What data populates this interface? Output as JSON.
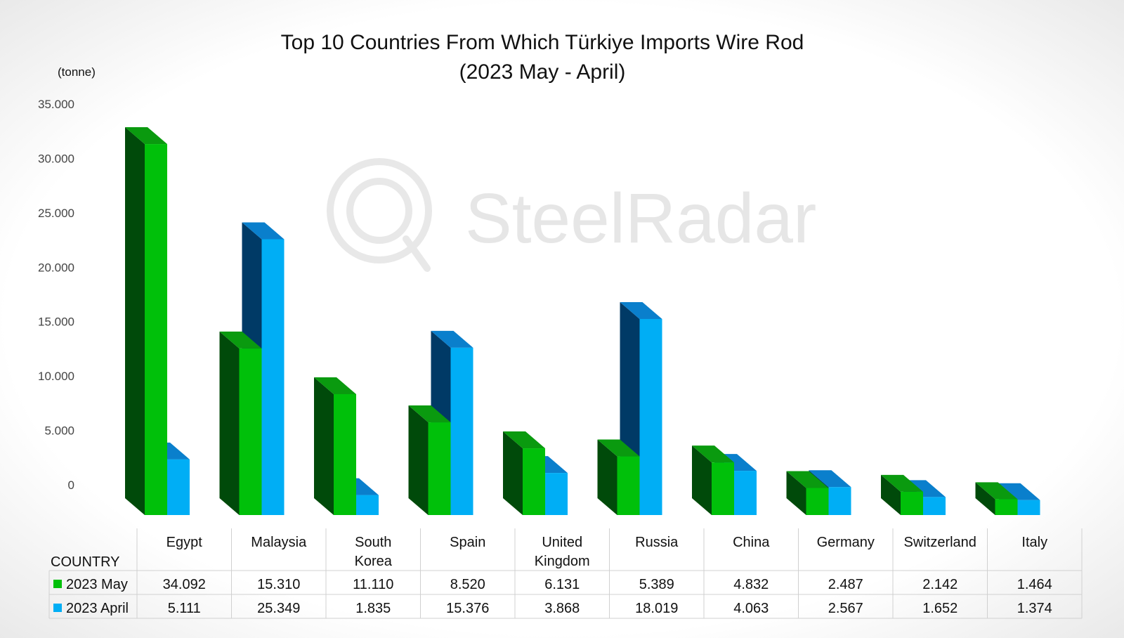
{
  "chart_data": {
    "type": "bar",
    "title": [
      "Top 10 Countries From Which Türkiye Imports Wire Rod",
      "(2023 May - April)"
    ],
    "unit": "(tonne)",
    "xlabel": "COUNTRY",
    "ylim": [
      0,
      35000
    ],
    "yticks": [
      "0",
      "5.000",
      "10.000",
      "15.000",
      "20.000",
      "25.000",
      "30.000",
      "35.000"
    ],
    "categories": [
      [
        "Egypt"
      ],
      [
        "Malaysia"
      ],
      [
        "South",
        "Korea"
      ],
      [
        "Spain"
      ],
      [
        "United",
        "Kingdom"
      ],
      [
        "Russia"
      ],
      [
        "China"
      ],
      [
        "Germany"
      ],
      [
        "Switzerland"
      ],
      [
        "Italy"
      ]
    ],
    "series": [
      {
        "name": "2023 May",
        "values": [
          34092,
          15310,
          11110,
          8520,
          6131,
          5389,
          4832,
          2487,
          2142,
          1464
        ],
        "labels": [
          "34.092",
          "15.310",
          "11.110",
          "8.520",
          "6.131",
          "5.389",
          "4.832",
          "2.487",
          "2.142",
          "1.464"
        ],
        "color": "#00c00a",
        "side_color": "#004a0a",
        "top_color": "#0a9a0f"
      },
      {
        "name": "2023 April",
        "values": [
          5111,
          25349,
          1835,
          15376,
          3868,
          18019,
          4063,
          2567,
          1652,
          1374
        ],
        "labels": [
          "5.111",
          "25.349",
          "1.835",
          "15.376",
          "3.868",
          "18.019",
          "4.063",
          "2.567",
          "1.652",
          "1.374"
        ],
        "color": "#00aef5",
        "side_color": "#003a66",
        "top_color": "#0a7fcc"
      }
    ],
    "grid": false,
    "legend": "data-table"
  },
  "watermark": "SteelRadar"
}
